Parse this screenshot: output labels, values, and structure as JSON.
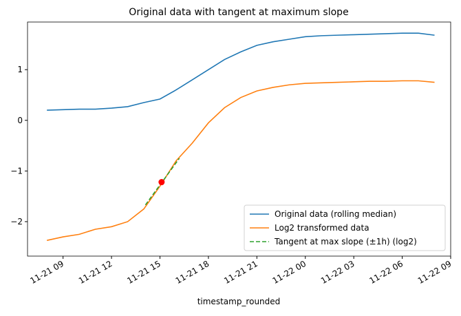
{
  "chart_data": {
    "type": "line",
    "title": "Original data with tangent at maximum slope",
    "xlabel": "timestamp_rounded",
    "x": [
      8,
      9,
      10,
      11,
      12,
      13,
      14,
      15,
      16,
      17,
      18,
      19,
      20,
      21,
      22,
      23,
      24,
      25,
      26,
      27,
      28,
      29,
      30,
      31,
      32
    ],
    "series": [
      {
        "name": "Original data (rolling median)",
        "color": "#1f77b4",
        "dash": false,
        "values": [
          0.2,
          0.21,
          0.22,
          0.22,
          0.24,
          0.27,
          0.35,
          0.42,
          0.6,
          0.8,
          1.0,
          1.2,
          1.35,
          1.48,
          1.55,
          1.6,
          1.65,
          1.67,
          1.68,
          1.69,
          1.7,
          1.71,
          1.72,
          1.72,
          1.68
        ]
      },
      {
        "name": "Log2 transformed data",
        "color": "#ff7f0e",
        "dash": false,
        "values": [
          -2.37,
          -2.3,
          -2.25,
          -2.15,
          -2.1,
          -2.0,
          -1.75,
          -1.3,
          -0.8,
          -0.45,
          -0.05,
          0.25,
          0.45,
          0.58,
          0.65,
          0.7,
          0.73,
          0.74,
          0.75,
          0.76,
          0.77,
          0.77,
          0.78,
          0.78,
          0.75
        ]
      },
      {
        "name": "Tangent at max slope (±1h) (log2)",
        "color": "#2ca02c",
        "dash": true,
        "x": [
          14.1,
          16.2
        ],
        "values": [
          -1.67,
          -0.75
        ]
      }
    ],
    "point": {
      "x": 15.1,
      "y": -1.22,
      "color": "#ff0000"
    },
    "xlim": [
      6.8,
      33.0
    ],
    "xticks": [
      {
        "value": 9,
        "label": "11-21 09"
      },
      {
        "value": 12,
        "label": "11-21 12"
      },
      {
        "value": 15,
        "label": "11-21 15"
      },
      {
        "value": 18,
        "label": "11-21 18"
      },
      {
        "value": 21,
        "label": "11-21 21"
      },
      {
        "value": 24,
        "label": "11-22 00"
      },
      {
        "value": 27,
        "label": "11-22 03"
      },
      {
        "value": 30,
        "label": "11-22 06"
      },
      {
        "value": 33,
        "label": "11-22 09"
      }
    ],
    "ylim": [
      -2.68,
      1.94
    ],
    "yticks": [
      {
        "value": -2,
        "label": "−2"
      },
      {
        "value": -1,
        "label": "−1"
      },
      0,
      1
    ],
    "legend": "lower right"
  }
}
